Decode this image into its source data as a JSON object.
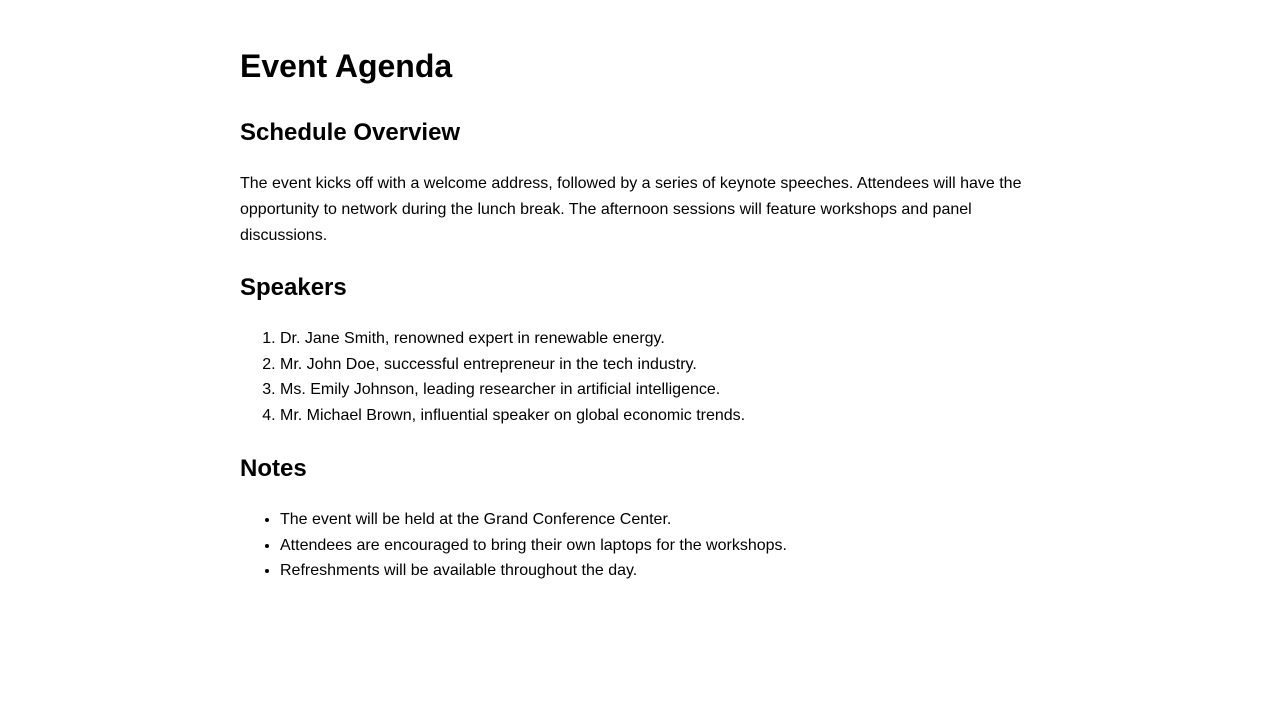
{
  "document": {
    "title": "Event Agenda",
    "sections": {
      "schedule": {
        "heading": "Schedule Overview",
        "body": "The event kicks off with a welcome address, followed by a series of keynote speeches. Attendees will have the opportunity to network during the lunch break. The afternoon sessions will feature workshops and panel discussions."
      },
      "speakers": {
        "heading": "Speakers",
        "items": [
          "Dr. Jane Smith, renowned expert in renewable energy.",
          "Mr. John Doe, successful entrepreneur in the tech industry.",
          "Ms. Emily Johnson, leading researcher in artificial intelligence.",
          "Mr. Michael Brown, influential speaker on global economic trends."
        ]
      },
      "notes": {
        "heading": "Notes",
        "items": [
          "The event will be held at the Grand Conference Center.",
          "Attendees are encouraged to bring their own laptops for the workshops.",
          "Refreshments will be available throughout the day."
        ]
      }
    }
  }
}
